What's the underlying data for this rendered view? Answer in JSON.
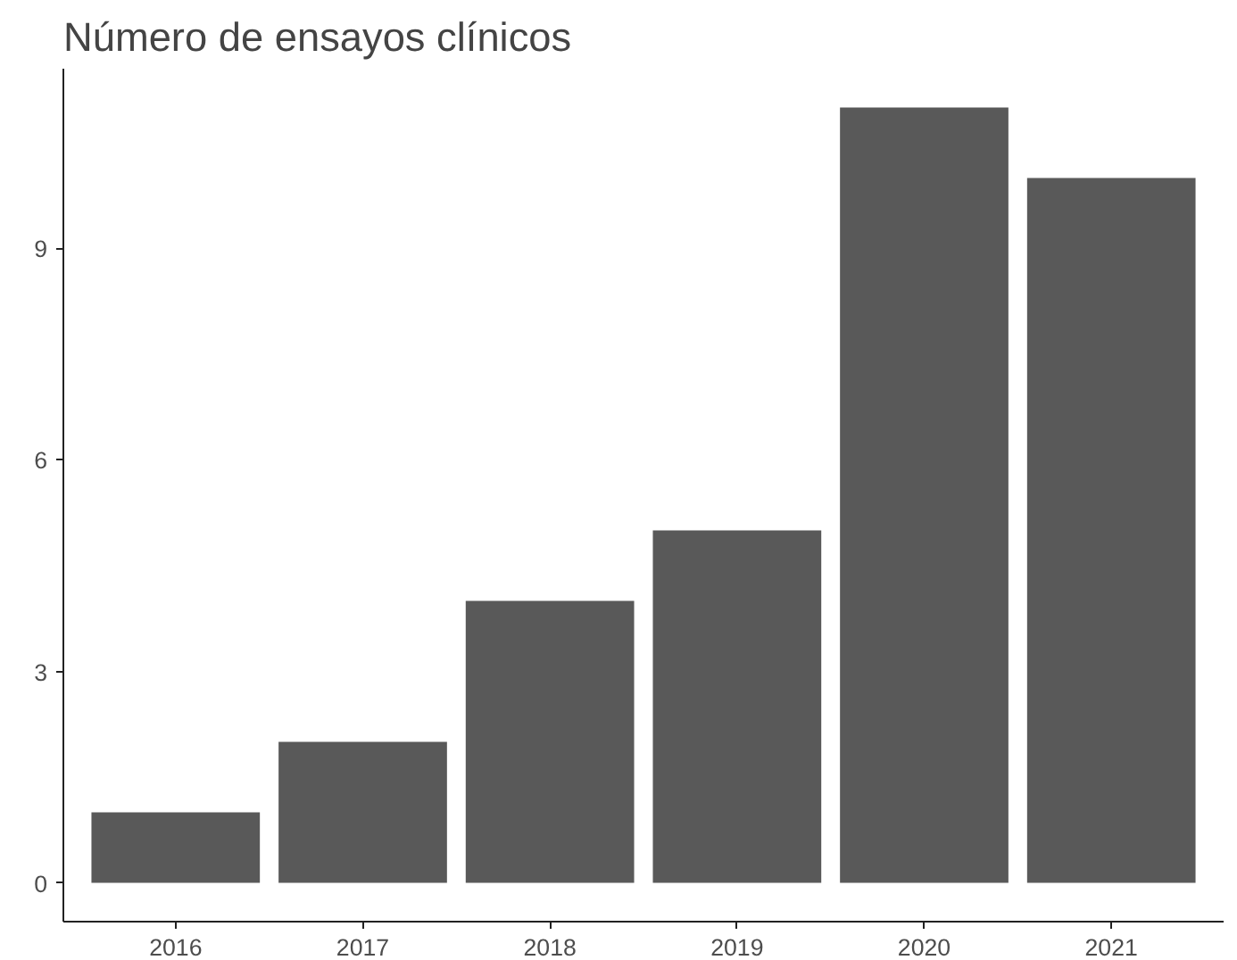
{
  "chart_data": {
    "type": "bar",
    "title": "Número de ensayos clínicos",
    "categories": [
      "2016",
      "2017",
      "2018",
      "2019",
      "2020",
      "2021"
    ],
    "values": [
      1,
      2,
      4,
      5,
      11,
      10
    ],
    "color": "#595959",
    "ylim": [
      -0.55,
      11.55
    ],
    "yticks": [
      0,
      3,
      6,
      9
    ],
    "grid": false
  }
}
